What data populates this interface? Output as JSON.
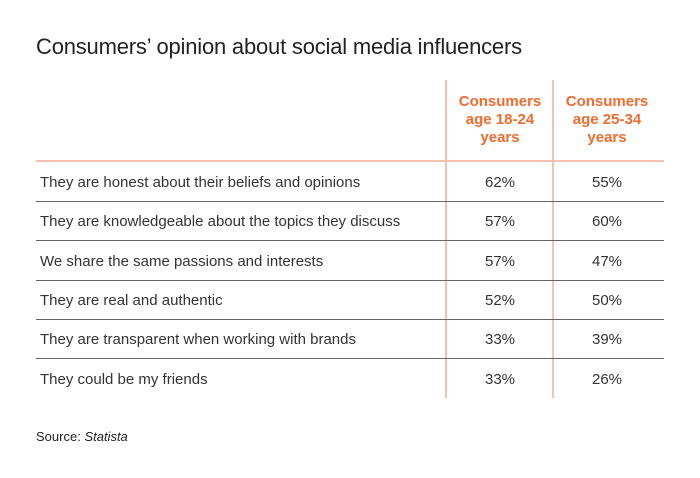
{
  "chart_data": {
    "type": "table",
    "title": "Consumers’ opinion about social media influencers",
    "columns": [
      "Consumers age 18-24 years",
      "Consumers age 25-34 years"
    ],
    "rows": [
      {
        "label": "They are honest about their beliefs and opinions",
        "values": [
          "62%",
          "55%"
        ]
      },
      {
        "label": "They are knowledgeable about the topics they discuss",
        "values": [
          "57%",
          "60%"
        ]
      },
      {
        "label": "We share the same passions and interests",
        "values": [
          "57%",
          "47%"
        ]
      },
      {
        "label": "They are real and authentic",
        "values": [
          "52%",
          "50%"
        ]
      },
      {
        "label": "They are transparent when working with brands",
        "values": [
          "33%",
          "39%"
        ]
      },
      {
        "label": "They could be my friends",
        "values": [
          "33%",
          "26%"
        ]
      }
    ],
    "source_label": "Source:",
    "source": "Statista",
    "colors": {
      "header": "#f26a2e",
      "accent_lines": "#f7c1b0",
      "row_lines": "#666666"
    }
  }
}
